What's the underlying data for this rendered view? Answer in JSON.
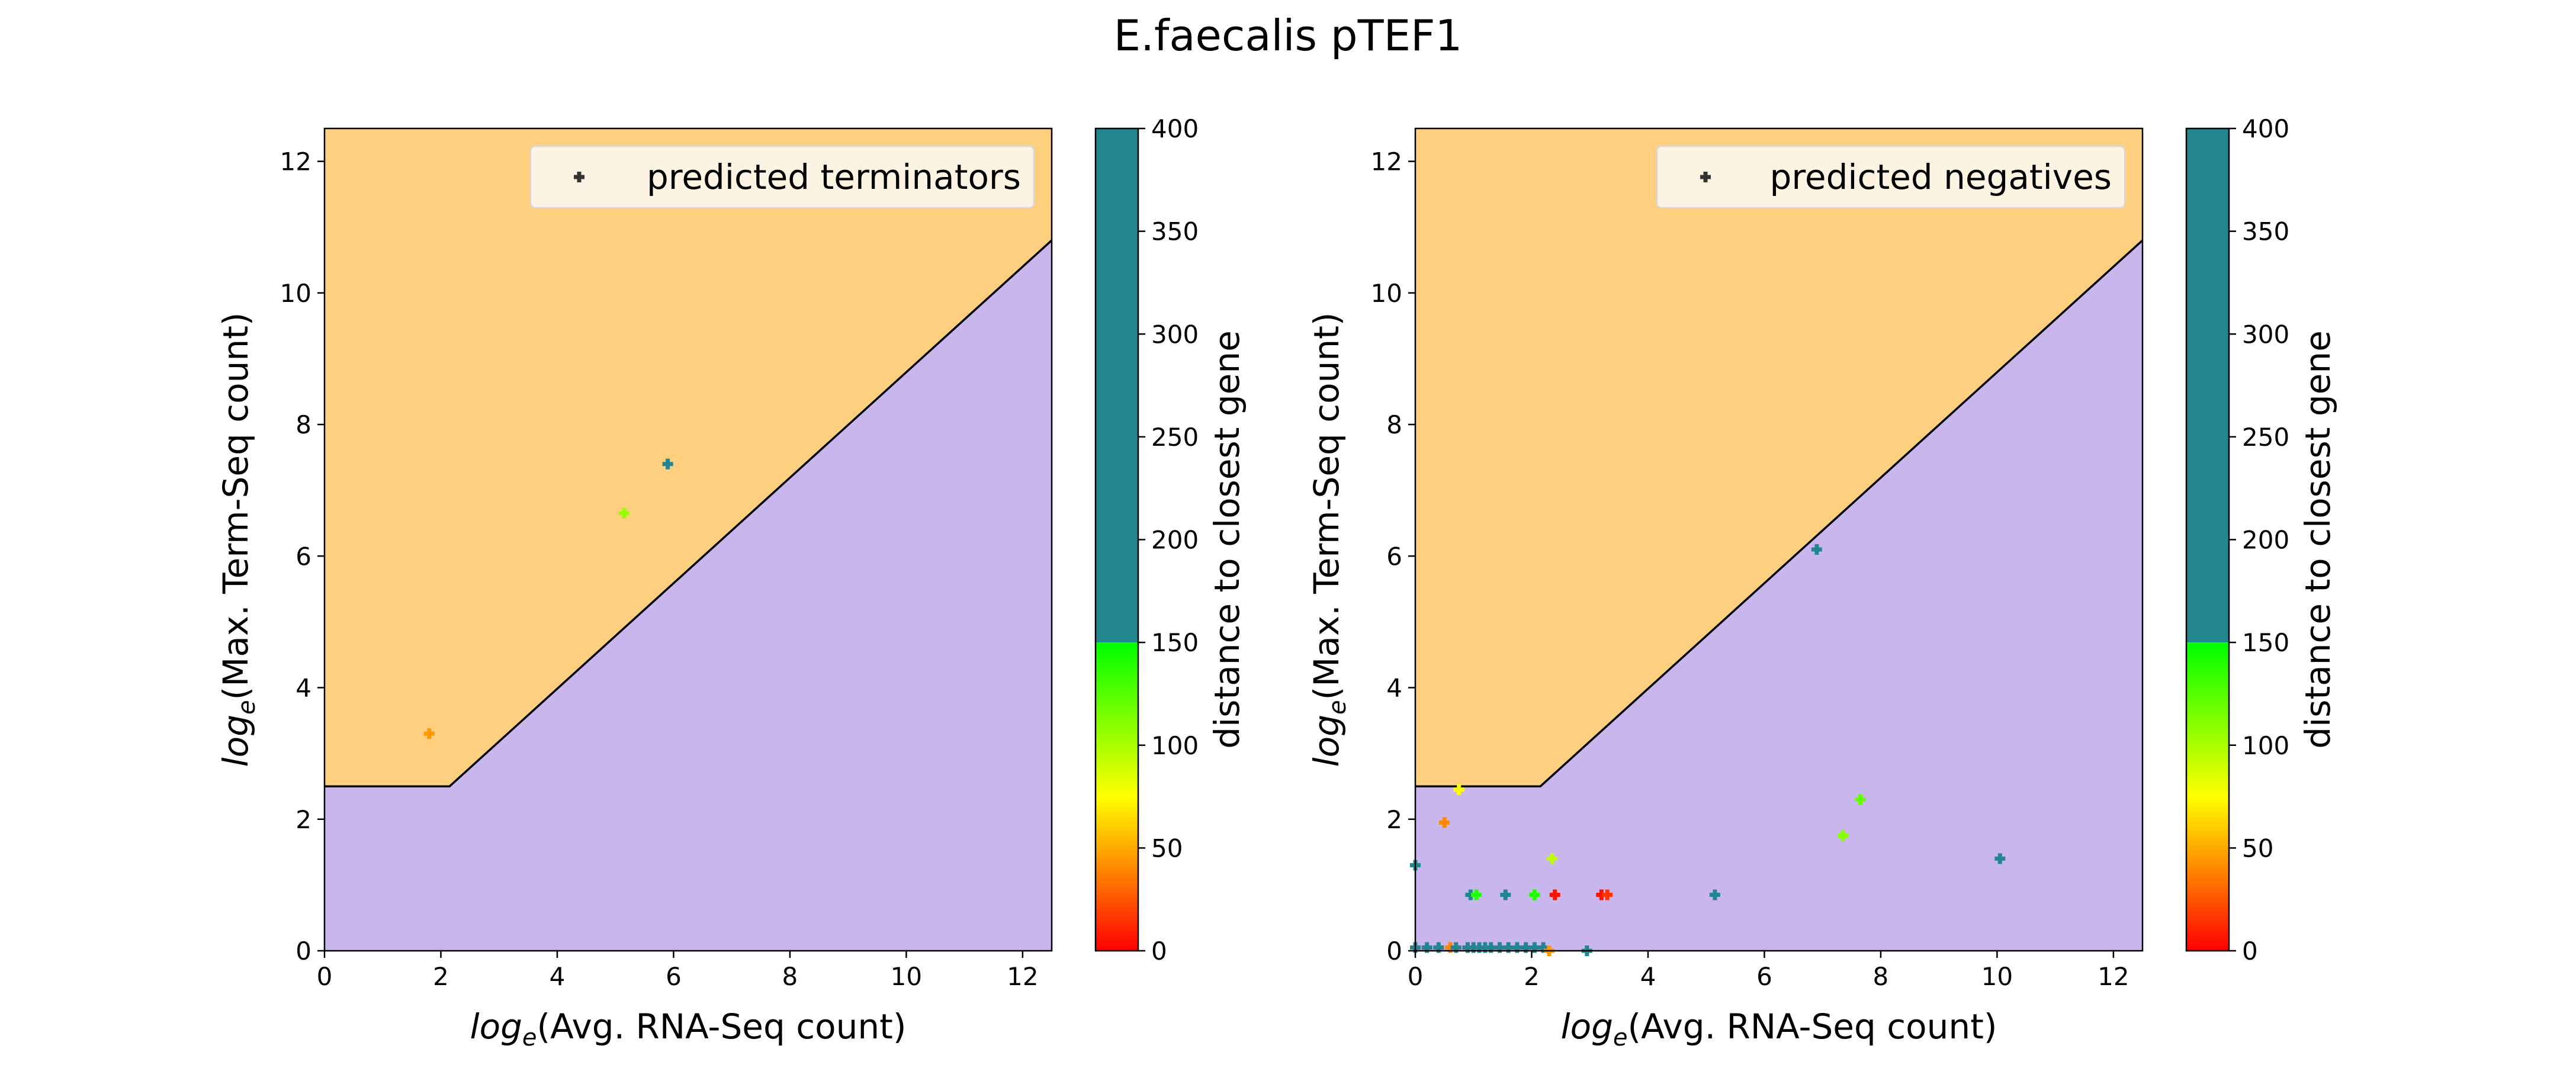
{
  "figure": {
    "title": "E.faecalis pTEF1"
  },
  "colors": {
    "region_upper": "#fdcf7f",
    "region_lower": "#c9b6ec",
    "boundary": "#000000",
    "legend_bg": "#fdf3e3",
    "legend_marker": "#333333"
  },
  "colorbar": {
    "label": "distance to closest gene",
    "ticks": [
      "0",
      "50",
      "100",
      "150",
      "200",
      "250",
      "300",
      "350",
      "400"
    ],
    "range": [
      0,
      400
    ],
    "gradient_stops": [
      {
        "value": 0,
        "color": "#ff0000"
      },
      {
        "value": 75,
        "color": "#ffff00"
      },
      {
        "value": 150,
        "color": "#00ff00"
      }
    ],
    "high_color": "#23868f",
    "high_from": 150
  },
  "chart_data": [
    {
      "type": "scatter",
      "xlabel_prefix": "log",
      "xlabel_sub": "e",
      "xlabel_rest": "(Avg. RNA-Seq count)",
      "ylabel_prefix": "log",
      "ylabel_sub": "e",
      "ylabel_rest": "(Max. Term-Seq count)",
      "xlim": [
        0,
        12.5
      ],
      "ylim": [
        0,
        12.5
      ],
      "xticks": [
        "0",
        "2",
        "4",
        "6",
        "8",
        "10",
        "12"
      ],
      "yticks": [
        "0",
        "2",
        "4",
        "6",
        "8",
        "10",
        "12"
      ],
      "boundary": [
        [
          0,
          2.5
        ],
        [
          2.15,
          2.5
        ],
        [
          12.5,
          10.8
        ]
      ],
      "legend": "predicted terminators",
      "legend_position": "top-right",
      "points": [
        {
          "x": 1.8,
          "y": 3.3,
          "dist": 45
        },
        {
          "x": 5.15,
          "y": 6.65,
          "dist": 105
        },
        {
          "x": 5.9,
          "y": 7.4,
          "dist": 320
        }
      ]
    },
    {
      "type": "scatter",
      "xlabel_prefix": "log",
      "xlabel_sub": "e",
      "xlabel_rest": "(Avg. RNA-Seq count)",
      "ylabel_prefix": "log",
      "ylabel_sub": "e",
      "ylabel_rest": "(Max. Term-Seq count)",
      "xlim": [
        0,
        12.5
      ],
      "ylim": [
        0,
        12.5
      ],
      "xticks": [
        "0",
        "2",
        "4",
        "6",
        "8",
        "10",
        "12"
      ],
      "yticks": [
        "0",
        "2",
        "4",
        "6",
        "8",
        "10",
        "12"
      ],
      "boundary": [
        [
          0,
          2.5
        ],
        [
          2.15,
          2.5
        ],
        [
          12.5,
          10.8
        ]
      ],
      "legend": "predicted negatives",
      "legend_position": "top-right",
      "points": [
        {
          "x": 6.9,
          "y": 6.1,
          "dist": 320
        },
        {
          "x": 0.75,
          "y": 2.45,
          "dist": 75
        },
        {
          "x": 0.5,
          "y": 1.95,
          "dist": 40
        },
        {
          "x": 7.65,
          "y": 2.3,
          "dist": 120
        },
        {
          "x": 7.35,
          "y": 1.75,
          "dist": 110
        },
        {
          "x": 10.05,
          "y": 1.4,
          "dist": 330
        },
        {
          "x": 2.35,
          "y": 1.4,
          "dist": 95
        },
        {
          "x": 0.0,
          "y": 1.3,
          "dist": 320
        },
        {
          "x": 0.95,
          "y": 0.85,
          "dist": 300
        },
        {
          "x": 1.05,
          "y": 0.85,
          "dist": 140
        },
        {
          "x": 1.55,
          "y": 0.85,
          "dist": 320
        },
        {
          "x": 2.05,
          "y": 0.85,
          "dist": 140
        },
        {
          "x": 2.4,
          "y": 0.85,
          "dist": 5
        },
        {
          "x": 3.2,
          "y": 0.85,
          "dist": 5
        },
        {
          "x": 3.3,
          "y": 0.85,
          "dist": 15
        },
        {
          "x": 5.15,
          "y": 0.85,
          "dist": 320
        },
        {
          "x": 0.0,
          "y": 0.05,
          "dist": 320
        },
        {
          "x": 0.2,
          "y": 0.05,
          "dist": 320
        },
        {
          "x": 0.4,
          "y": 0.05,
          "dist": 320
        },
        {
          "x": 0.6,
          "y": 0.05,
          "dist": 40
        },
        {
          "x": 0.7,
          "y": 0.05,
          "dist": 320
        },
        {
          "x": 0.9,
          "y": 0.05,
          "dist": 320
        },
        {
          "x": 1.0,
          "y": 0.05,
          "dist": 320
        },
        {
          "x": 1.1,
          "y": 0.05,
          "dist": 320
        },
        {
          "x": 1.2,
          "y": 0.05,
          "dist": 320
        },
        {
          "x": 1.3,
          "y": 0.05,
          "dist": 320
        },
        {
          "x": 1.45,
          "y": 0.05,
          "dist": 320
        },
        {
          "x": 1.6,
          "y": 0.05,
          "dist": 320
        },
        {
          "x": 1.75,
          "y": 0.05,
          "dist": 320
        },
        {
          "x": 1.9,
          "y": 0.05,
          "dist": 320
        },
        {
          "x": 2.05,
          "y": 0.05,
          "dist": 320
        },
        {
          "x": 2.2,
          "y": 0.05,
          "dist": 320
        },
        {
          "x": 2.3,
          "y": 0.0,
          "dist": 45
        },
        {
          "x": 2.95,
          "y": 0.0,
          "dist": 320
        }
      ]
    }
  ]
}
